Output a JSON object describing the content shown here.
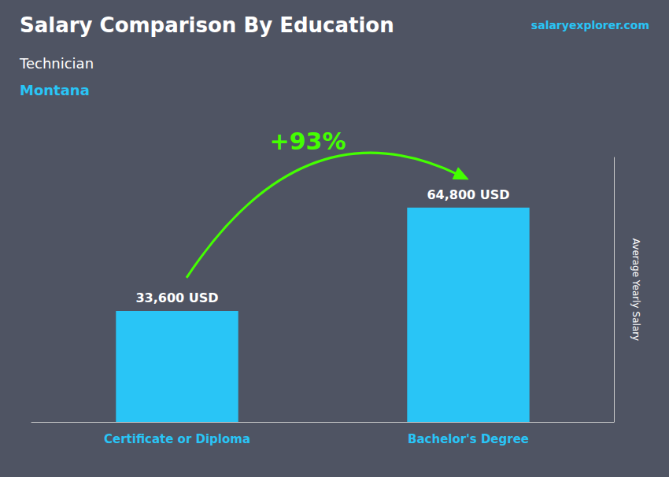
{
  "chart_data": {
    "type": "bar",
    "title": "Salary Comparison By Education",
    "subtitle": [
      "Technician",
      "Montana"
    ],
    "annotations": [
      "+93%",
      "salaryexplorer.com"
    ],
    "ylabel": "Average Yearly Salary",
    "categories": [
      "Certificate or Diploma",
      "Bachelor's Degree"
    ],
    "values": [
      33600,
      64800
    ],
    "value_labels": [
      "33,600 USD",
      "64,800 USD"
    ],
    "data_labels": true,
    "color": "#29c5f6",
    "ylim": [
      0,
      80000
    ],
    "grid": false,
    "tick_labels": "x"
  }
}
